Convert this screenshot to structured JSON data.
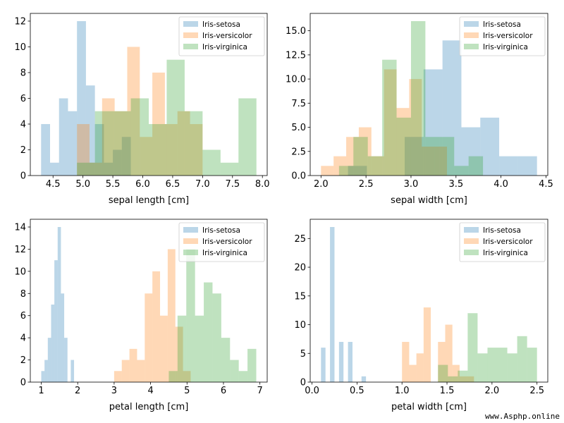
{
  "colors": {
    "setosa": "#1f77b4",
    "versicolor": "#ff7f0e",
    "virginica": "#2ca02c",
    "bar_alpha": 0.3
  },
  "legend": [
    "Iris-setosa",
    "Iris-versicolor",
    "Iris-virginica"
  ],
  "watermark": "www.Asphp.online",
  "chart_data": [
    {
      "type": "bar",
      "subtype": "overlapping-histogram",
      "xlabel": "sepal length [cm]",
      "ylabel": "",
      "xlim": [
        4.12,
        8.08
      ],
      "ylim": [
        0,
        12.6
      ],
      "xticks": [
        4.5,
        5.0,
        5.5,
        6.0,
        6.5,
        7.0,
        7.5,
        8.0
      ],
      "xtick_labels": [
        "4.5",
        "5.0",
        "5.5",
        "6.0",
        "6.5",
        "7.0",
        "7.5",
        "8.0"
      ],
      "yticks": [
        0,
        2,
        4,
        6,
        8,
        10,
        12
      ],
      "ytick_labels": [
        "0",
        "2",
        "4",
        "6",
        "8",
        "10",
        "12"
      ],
      "legend_position": "top-right",
      "series": [
        {
          "name": "Iris-setosa",
          "bins": [
            4.3,
            4.45,
            4.6,
            4.75,
            4.9,
            5.05,
            5.2,
            5.35,
            5.5,
            5.65,
            5.8
          ],
          "counts": [
            4,
            1,
            6,
            5,
            12,
            7,
            4,
            1,
            2,
            3
          ]
        },
        {
          "name": "Iris-versicolor",
          "bins": [
            4.9,
            5.11,
            5.32,
            5.53,
            5.74,
            5.95,
            6.16,
            6.37,
            6.58,
            6.79,
            7.0
          ],
          "counts": [
            4,
            1,
            6,
            5,
            10,
            3,
            8,
            4,
            5,
            4
          ]
        },
        {
          "name": "Iris-virginica",
          "bins": [
            4.9,
            5.2,
            5.5,
            5.8,
            6.1,
            6.4,
            6.7,
            7.0,
            7.3,
            7.6,
            7.9
          ],
          "counts": [
            1,
            5,
            5,
            6,
            4,
            9,
            5,
            2,
            1,
            6
          ]
        }
      ]
    },
    {
      "type": "bar",
      "subtype": "overlapping-histogram",
      "xlabel": "sepal width [cm]",
      "ylabel": "",
      "xlim": [
        1.88,
        4.52
      ],
      "ylim": [
        0,
        16.8
      ],
      "xticks": [
        2.0,
        2.5,
        3.0,
        3.5,
        4.0,
        4.5
      ],
      "xtick_labels": [
        "2.0",
        "2.5",
        "3.0",
        "3.5",
        "4.0",
        "4.5"
      ],
      "yticks": [
        0,
        2.5,
        5,
        7.5,
        10,
        12.5,
        15
      ],
      "ytick_labels": [
        "0.0",
        "2.5",
        "5.0",
        "7.5",
        "10.0",
        "12.5",
        "15.0"
      ],
      "legend_position": "top-right",
      "series": [
        {
          "name": "Iris-setosa",
          "bins": [
            2.3,
            2.51,
            2.72,
            2.93,
            3.14,
            3.35,
            3.56,
            3.77,
            3.98,
            4.19,
            4.4
          ],
          "counts": [
            1,
            0,
            0,
            4,
            11,
            14,
            5,
            6,
            2,
            2
          ]
        },
        {
          "name": "Iris-versicolor",
          "bins": [
            2.0,
            2.14,
            2.28,
            2.42,
            2.56,
            2.7,
            2.84,
            2.98,
            3.12,
            3.26,
            3.4
          ],
          "counts": [
            1,
            2,
            4,
            5,
            2,
            11,
            7,
            10,
            3,
            3
          ]
        },
        {
          "name": "Iris-virginica",
          "bins": [
            2.2,
            2.36,
            2.52,
            2.68,
            2.84,
            3.0,
            3.16,
            3.32,
            3.48,
            3.64,
            3.8
          ],
          "counts": [
            1,
            4,
            2,
            12,
            6,
            16,
            4,
            4,
            1,
            2
          ]
        }
      ]
    },
    {
      "type": "bar",
      "subtype": "overlapping-histogram",
      "xlabel": "petal length [cm]",
      "ylabel": "",
      "xlim": [
        0.7,
        7.2
      ],
      "ylim": [
        0,
        14.7
      ],
      "xticks": [
        1,
        2,
        3,
        4,
        5,
        6,
        7
      ],
      "xtick_labels": [
        "1",
        "2",
        "3",
        "4",
        "5",
        "6",
        "7"
      ],
      "yticks": [
        0,
        2,
        4,
        6,
        8,
        10,
        12,
        14
      ],
      "ytick_labels": [
        "0",
        "2",
        "4",
        "6",
        "8",
        "10",
        "12",
        "14"
      ],
      "legend_position": "top-right",
      "series": [
        {
          "name": "Iris-setosa",
          "bins": [
            1.0,
            1.09,
            1.18,
            1.27,
            1.36,
            1.45,
            1.54,
            1.63,
            1.72,
            1.81,
            1.9
          ],
          "counts": [
            1,
            2,
            4,
            7,
            11,
            14,
            8,
            4,
            0,
            2
          ]
        },
        {
          "name": "Iris-versicolor",
          "bins": [
            3.0,
            3.21,
            3.42,
            3.63,
            3.84,
            4.05,
            4.26,
            4.47,
            4.68,
            4.89,
            5.1
          ],
          "counts": [
            1,
            2,
            3,
            2,
            8,
            10,
            6,
            12,
            5,
            1
          ]
        },
        {
          "name": "Iris-virginica",
          "bins": [
            4.5,
            4.74,
            4.98,
            5.22,
            5.46,
            5.7,
            5.94,
            6.18,
            6.42,
            6.66,
            6.9
          ],
          "counts": [
            1,
            6,
            12,
            6,
            9,
            8,
            4,
            2,
            1,
            3
          ]
        }
      ]
    },
    {
      "type": "bar",
      "subtype": "overlapping-histogram",
      "xlabel": "petal width [cm]",
      "ylabel": "",
      "xlim": [
        -0.02,
        2.62
      ],
      "ylim": [
        0,
        28.35
      ],
      "xticks": [
        0.0,
        0.5,
        1.0,
        1.5,
        2.0,
        2.5
      ],
      "xtick_labels": [
        "0.0",
        "0.5",
        "1.0",
        "1.5",
        "2.0",
        "2.5"
      ],
      "yticks": [
        0,
        5,
        10,
        15,
        20,
        25
      ],
      "ytick_labels": [
        "0",
        "5",
        "10",
        "15",
        "20",
        "25"
      ],
      "legend_position": "top-right",
      "series": [
        {
          "name": "Iris-setosa",
          "bins": [
            0.1,
            0.15,
            0.2,
            0.25,
            0.3,
            0.35,
            0.4,
            0.45,
            0.5,
            0.55,
            0.6
          ],
          "counts": [
            6,
            0,
            27,
            0,
            7,
            0,
            7,
            0,
            0,
            1
          ]
        },
        {
          "name": "Iris-versicolor",
          "bins": [
            1.0,
            1.08,
            1.16,
            1.24,
            1.32,
            1.4,
            1.48,
            1.56,
            1.64,
            1.72,
            1.8
          ],
          "counts": [
            7,
            3,
            5,
            13,
            0,
            7,
            10,
            3,
            1,
            1
          ]
        },
        {
          "name": "Iris-virginica",
          "bins": [
            1.4,
            1.51,
            1.62,
            1.73,
            1.84,
            1.95,
            2.06,
            2.17,
            2.28,
            2.39,
            2.5
          ],
          "counts": [
            3,
            1,
            2,
            12,
            5,
            6,
            6,
            5,
            8,
            6
          ]
        }
      ]
    }
  ]
}
